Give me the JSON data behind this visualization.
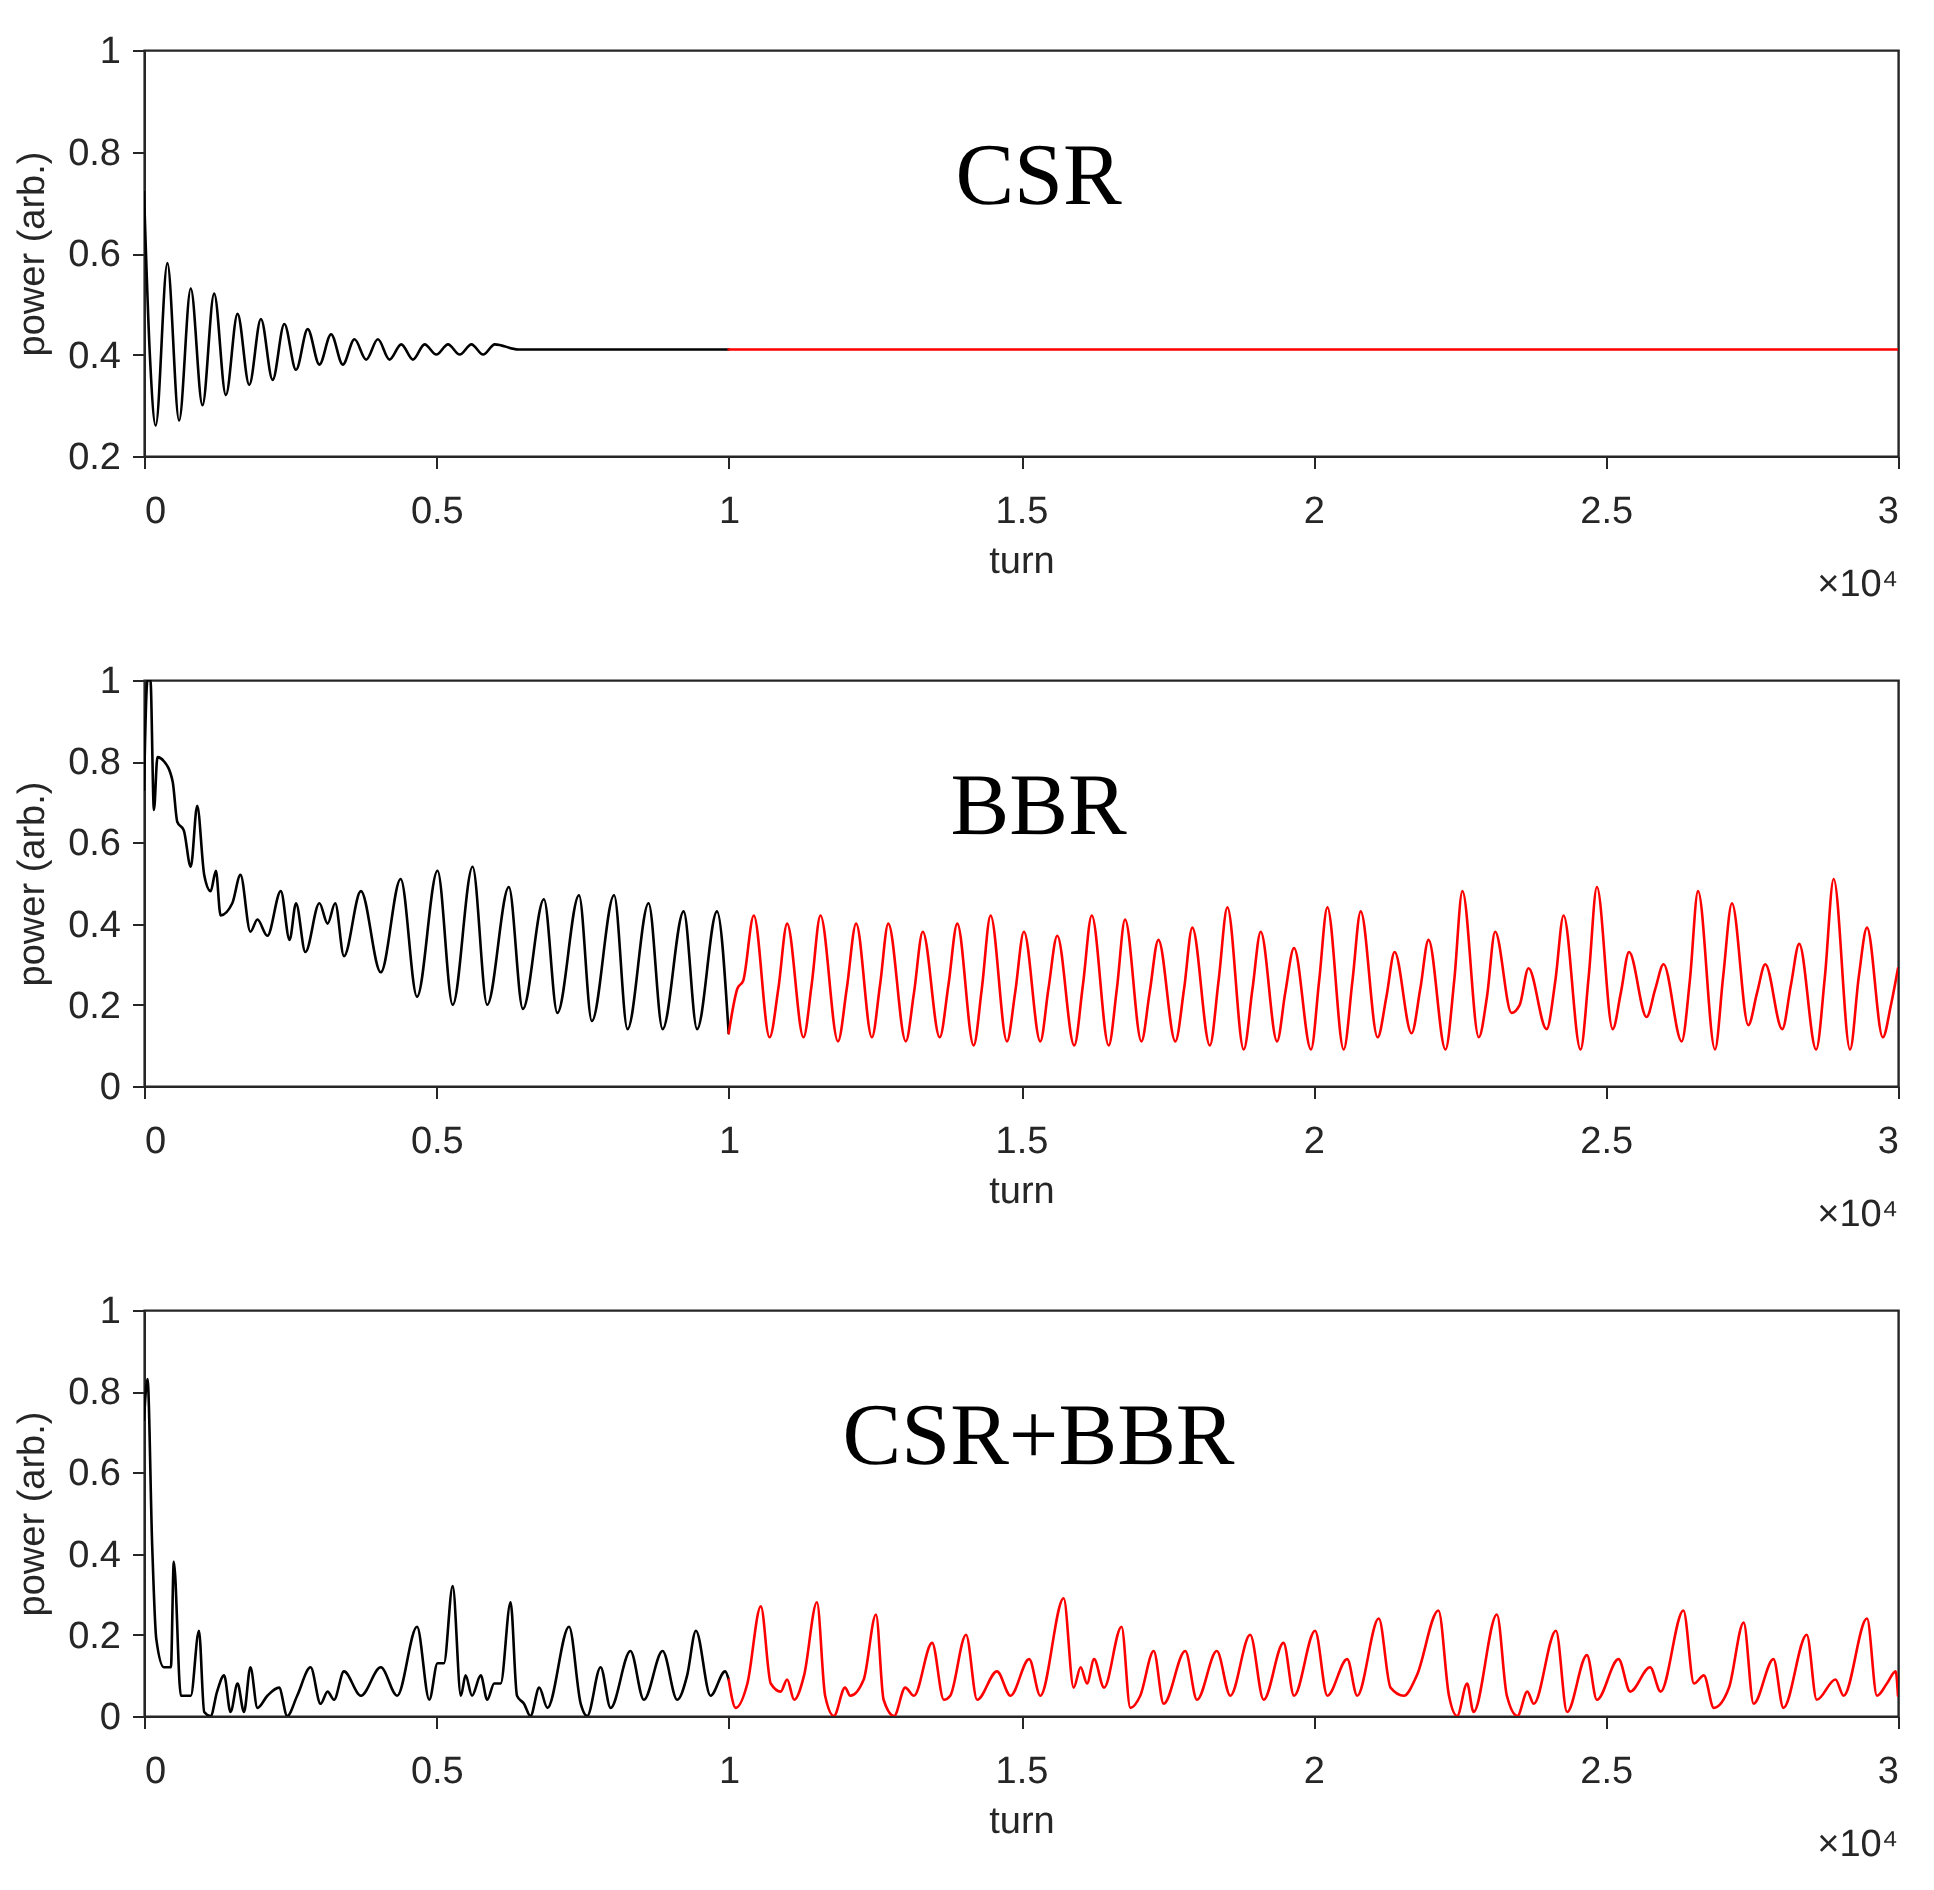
{
  "chart_data": [
    {
      "type": "line",
      "title": "CSR",
      "xlabel": "turn",
      "ylabel": "power (arb.)",
      "annotations": [
        "×10⁴"
      ],
      "xlim": [
        0,
        3
      ],
      "xticks": [
        0,
        0.5,
        1,
        1.5,
        2,
        2.5,
        3
      ],
      "ylim": [
        0.2,
        1
      ],
      "yticks": [
        0.2,
        0.4,
        0.6,
        0.8,
        1
      ],
      "line_style": "solid",
      "series": [
        {
          "color": "#000000",
          "x": [
            0,
            0.01,
            0.02,
            0.04,
            0.06,
            0.08,
            0.1,
            0.12,
            0.14,
            0.16,
            0.18,
            0.2,
            0.22,
            0.24,
            0.26,
            0.28,
            0.3,
            0.32,
            0.34,
            0.36,
            0.38,
            0.4,
            0.42,
            0.44,
            0.46,
            0.48,
            0.5,
            0.52,
            0.54,
            0.56,
            0.58,
            0.6,
            0.64,
            0.7,
            0.8,
            0.9,
            1
          ],
          "values": [
            0.72,
            0.4,
            0.26,
            0.58,
            0.27,
            0.53,
            0.3,
            0.52,
            0.32,
            0.48,
            0.34,
            0.47,
            0.35,
            0.46,
            0.37,
            0.45,
            0.38,
            0.44,
            0.38,
            0.43,
            0.39,
            0.43,
            0.39,
            0.42,
            0.39,
            0.42,
            0.4,
            0.42,
            0.4,
            0.42,
            0.4,
            0.42,
            0.41,
            0.41,
            0.41,
            0.41,
            0.41
          ]
        },
        {
          "color": "#ff0000",
          "x": [
            1,
            1.5,
            2,
            2.5,
            3
          ],
          "values": [
            0.41,
            0.41,
            0.41,
            0.41,
            0.41
          ]
        }
      ]
    },
    {
      "type": "line",
      "title": "BBR",
      "xlabel": "turn",
      "ylabel": "power (arb.)",
      "annotations": [
        "×10⁴"
      ],
      "xlim": [
        0,
        3
      ],
      "xticks": [
        0,
        0.5,
        1,
        1.5,
        2,
        2.5,
        3
      ],
      "ylim": [
        0,
        1
      ],
      "yticks": [
        0,
        0.2,
        0.4,
        0.6,
        0.8,
        1
      ],
      "line_style": "solid",
      "series": [
        {
          "color": "#000000",
          "x": [
            0,
            0.006,
            0.011,
            0.017,
            0.023,
            0.034,
            0.049,
            0.057,
            0.068,
            0.08,
            0.091,
            0.103,
            0.114,
            0.123,
            0.131,
            0.151,
            0.165,
            0.182,
            0.194,
            0.211,
            0.234,
            0.249,
            0.26,
            0.276,
            0.3,
            0.314,
            0.327,
            0.342,
            0.371,
            0.405,
            0.439,
            0.467,
            0.502,
            0.528,
            0.562,
            0.587,
            0.624,
            0.648,
            0.684,
            0.707,
            0.744,
            0.766,
            0.804,
            0.827,
            0.863,
            0.887,
            0.923,
            0.946,
            0.98,
            1
          ],
          "values": [
            0.73,
            1.0,
            1.0,
            0.68,
            0.81,
            0.8,
            0.75,
            0.65,
            0.63,
            0.54,
            0.69,
            0.52,
            0.48,
            0.53,
            0.42,
            0.45,
            0.52,
            0.38,
            0.41,
            0.37,
            0.48,
            0.36,
            0.45,
            0.33,
            0.45,
            0.4,
            0.45,
            0.32,
            0.48,
            0.28,
            0.51,
            0.22,
            0.53,
            0.2,
            0.54,
            0.2,
            0.49,
            0.19,
            0.46,
            0.18,
            0.47,
            0.16,
            0.47,
            0.14,
            0.45,
            0.14,
            0.43,
            0.14,
            0.43,
            0.13
          ]
        },
        {
          "color": "#ff0000",
          "x": [
            1,
            1.015,
            1.025,
            1.043,
            1.07,
            1.085,
            1.1,
            1.128,
            1.142,
            1.157,
            1.187,
            1.202,
            1.218,
            1.245,
            1.259,
            1.273,
            1.303,
            1.317,
            1.332,
            1.361,
            1.376,
            1.391,
            1.419,
            1.433,
            1.448,
            1.476,
            1.49,
            1.505,
            1.533,
            1.547,
            1.562,
            1.591,
            1.606,
            1.621,
            1.65,
            1.664,
            1.678,
            1.706,
            1.72,
            1.735,
            1.764,
            1.779,
            1.793,
            1.823,
            1.838,
            1.853,
            1.881,
            1.896,
            1.91,
            1.938,
            1.952,
            1.967,
            1.996,
            2.01,
            2.024,
            2.052,
            2.067,
            2.081,
            2.11,
            2.125,
            2.139,
            2.168,
            2.183,
            2.197,
            2.226,
            2.241,
            2.255,
            2.283,
            2.297,
            2.311,
            2.339,
            2.353,
            2.368,
            2.399,
            2.414,
            2.428,
            2.457,
            2.471,
            2.485,
            2.512,
            2.526,
            2.54,
            2.57,
            2.585,
            2.599,
            2.63,
            2.644,
            2.658,
            2.687,
            2.701,
            2.716,
            2.744,
            2.759,
            2.773,
            2.802,
            2.817,
            2.831,
            2.86,
            2.875,
            2.89,
            2.918,
            2.933,
            2.947,
            2.974,
            2.988,
            3
          ],
          "values": [
            0.13,
            0.24,
            0.26,
            0.42,
            0.12,
            0.24,
            0.4,
            0.12,
            0.25,
            0.42,
            0.11,
            0.24,
            0.4,
            0.12,
            0.25,
            0.4,
            0.11,
            0.23,
            0.38,
            0.12,
            0.25,
            0.4,
            0.1,
            0.24,
            0.42,
            0.11,
            0.23,
            0.38,
            0.11,
            0.24,
            0.37,
            0.1,
            0.25,
            0.42,
            0.1,
            0.24,
            0.41,
            0.11,
            0.23,
            0.36,
            0.11,
            0.24,
            0.39,
            0.1,
            0.26,
            0.44,
            0.09,
            0.24,
            0.38,
            0.11,
            0.23,
            0.34,
            0.09,
            0.26,
            0.44,
            0.09,
            0.26,
            0.43,
            0.12,
            0.22,
            0.33,
            0.13,
            0.24,
            0.36,
            0.09,
            0.26,
            0.48,
            0.12,
            0.22,
            0.38,
            0.18,
            0.2,
            0.29,
            0.14,
            0.26,
            0.42,
            0.09,
            0.27,
            0.49,
            0.14,
            0.23,
            0.33,
            0.17,
            0.24,
            0.3,
            0.11,
            0.26,
            0.48,
            0.09,
            0.27,
            0.45,
            0.15,
            0.23,
            0.3,
            0.14,
            0.25,
            0.35,
            0.09,
            0.27,
            0.51,
            0.09,
            0.27,
            0.39,
            0.12,
            0.2,
            0.29
          ]
        }
      ]
    },
    {
      "type": "line",
      "title": "CSR+BBR",
      "xlabel": "turn",
      "ylabel": "power (arb.)",
      "annotations": [
        "×10⁴"
      ],
      "xlim": [
        0,
        3
      ],
      "xticks": [
        0,
        0.5,
        1,
        1.5,
        2,
        2.5,
        3
      ],
      "ylim": [
        0,
        1
      ],
      "yticks": [
        0,
        0.2,
        0.4,
        0.6,
        0.8,
        1
      ],
      "line_style": "solid",
      "series": [
        {
          "color": "#000000",
          "x": [
            0,
            0.006,
            0.014,
            0.021,
            0.034,
            0.046,
            0.051,
            0.063,
            0.08,
            0.094,
            0.103,
            0.114,
            0.125,
            0.137,
            0.148,
            0.16,
            0.171,
            0.182,
            0.194,
            0.211,
            0.231,
            0.245,
            0.262,
            0.285,
            0.302,
            0.314,
            0.325,
            0.342,
            0.371,
            0.405,
            0.433,
            0.467,
            0.488,
            0.502,
            0.513,
            0.528,
            0.542,
            0.55,
            0.561,
            0.576,
            0.587,
            0.599,
            0.61,
            0.627,
            0.638,
            0.65,
            0.661,
            0.676,
            0.69,
            0.727,
            0.747,
            0.758,
            0.781,
            0.798,
            0.832,
            0.855,
            0.887,
            0.912,
            0.929,
            0.944,
            0.969,
            0.994,
            1
          ],
          "values": [
            0.73,
            0.83,
            0.42,
            0.19,
            0.12,
            0.12,
            0.38,
            0.05,
            0.05,
            0.21,
            0.01,
            0.0,
            0.06,
            0.1,
            0.01,
            0.08,
            0.01,
            0.12,
            0.02,
            0.05,
            0.07,
            0.0,
            0.05,
            0.12,
            0.03,
            0.06,
            0.04,
            0.11,
            0.05,
            0.12,
            0.05,
            0.22,
            0.04,
            0.13,
            0.13,
            0.32,
            0.05,
            0.1,
            0.05,
            0.1,
            0.04,
            0.08,
            0.08,
            0.28,
            0.05,
            0.03,
            0.0,
            0.07,
            0.02,
            0.22,
            0.03,
            0.0,
            0.12,
            0.02,
            0.16,
            0.04,
            0.16,
            0.04,
            0.1,
            0.21,
            0.05,
            0.11,
            0.09
          ]
        },
        {
          "color": "#ff0000",
          "x": [
            1,
            1.012,
            1.032,
            1.055,
            1.072,
            1.089,
            1.1,
            1.112,
            1.129,
            1.151,
            1.165,
            1.18,
            1.199,
            1.208,
            1.231,
            1.252,
            1.265,
            1.283,
            1.302,
            1.317,
            1.348,
            1.368,
            1.379,
            1.406,
            1.425,
            1.459,
            1.482,
            1.514,
            1.533,
            1.573,
            1.59,
            1.602,
            1.613,
            1.625,
            1.642,
            1.672,
            1.687,
            1.704,
            1.727,
            1.744,
            1.781,
            1.801,
            1.835,
            1.858,
            1.892,
            1.915,
            1.949,
            1.967,
            2.003,
            2.024,
            2.058,
            2.075,
            2.112,
            2.132,
            2.155,
            2.177,
            2.214,
            2.232,
            2.246,
            2.263,
            2.274,
            2.314,
            2.331,
            2.349,
            2.366,
            2.377,
            2.415,
            2.434,
            2.468,
            2.485,
            2.522,
            2.542,
            2.576,
            2.594,
            2.633,
            2.651,
            2.668,
            2.685,
            2.711,
            2.736,
            2.753,
            2.787,
            2.804,
            2.844,
            2.861,
            2.893,
            2.907,
            2.947,
            2.964,
            2.981,
            2.996,
            3
          ],
          "values": [
            0.09,
            0.02,
            0.08,
            0.27,
            0.08,
            0.06,
            0.09,
            0.04,
            0.1,
            0.28,
            0.05,
            0.0,
            0.07,
            0.05,
            0.09,
            0.25,
            0.04,
            0.0,
            0.07,
            0.05,
            0.18,
            0.04,
            0.05,
            0.2,
            0.04,
            0.11,
            0.05,
            0.14,
            0.05,
            0.29,
            0.07,
            0.12,
            0.08,
            0.14,
            0.07,
            0.22,
            0.02,
            0.05,
            0.16,
            0.03,
            0.16,
            0.04,
            0.16,
            0.05,
            0.2,
            0.04,
            0.18,
            0.05,
            0.21,
            0.05,
            0.14,
            0.05,
            0.24,
            0.07,
            0.05,
            0.1,
            0.26,
            0.05,
            0.0,
            0.08,
            0.01,
            0.25,
            0.05,
            0.0,
            0.06,
            0.03,
            0.21,
            0.01,
            0.15,
            0.04,
            0.14,
            0.06,
            0.12,
            0.06,
            0.26,
            0.08,
            0.1,
            0.02,
            0.07,
            0.23,
            0.03,
            0.14,
            0.02,
            0.2,
            0.04,
            0.09,
            0.05,
            0.24,
            0.05,
            0.08,
            0.11,
            0.05
          ]
        }
      ]
    }
  ]
}
